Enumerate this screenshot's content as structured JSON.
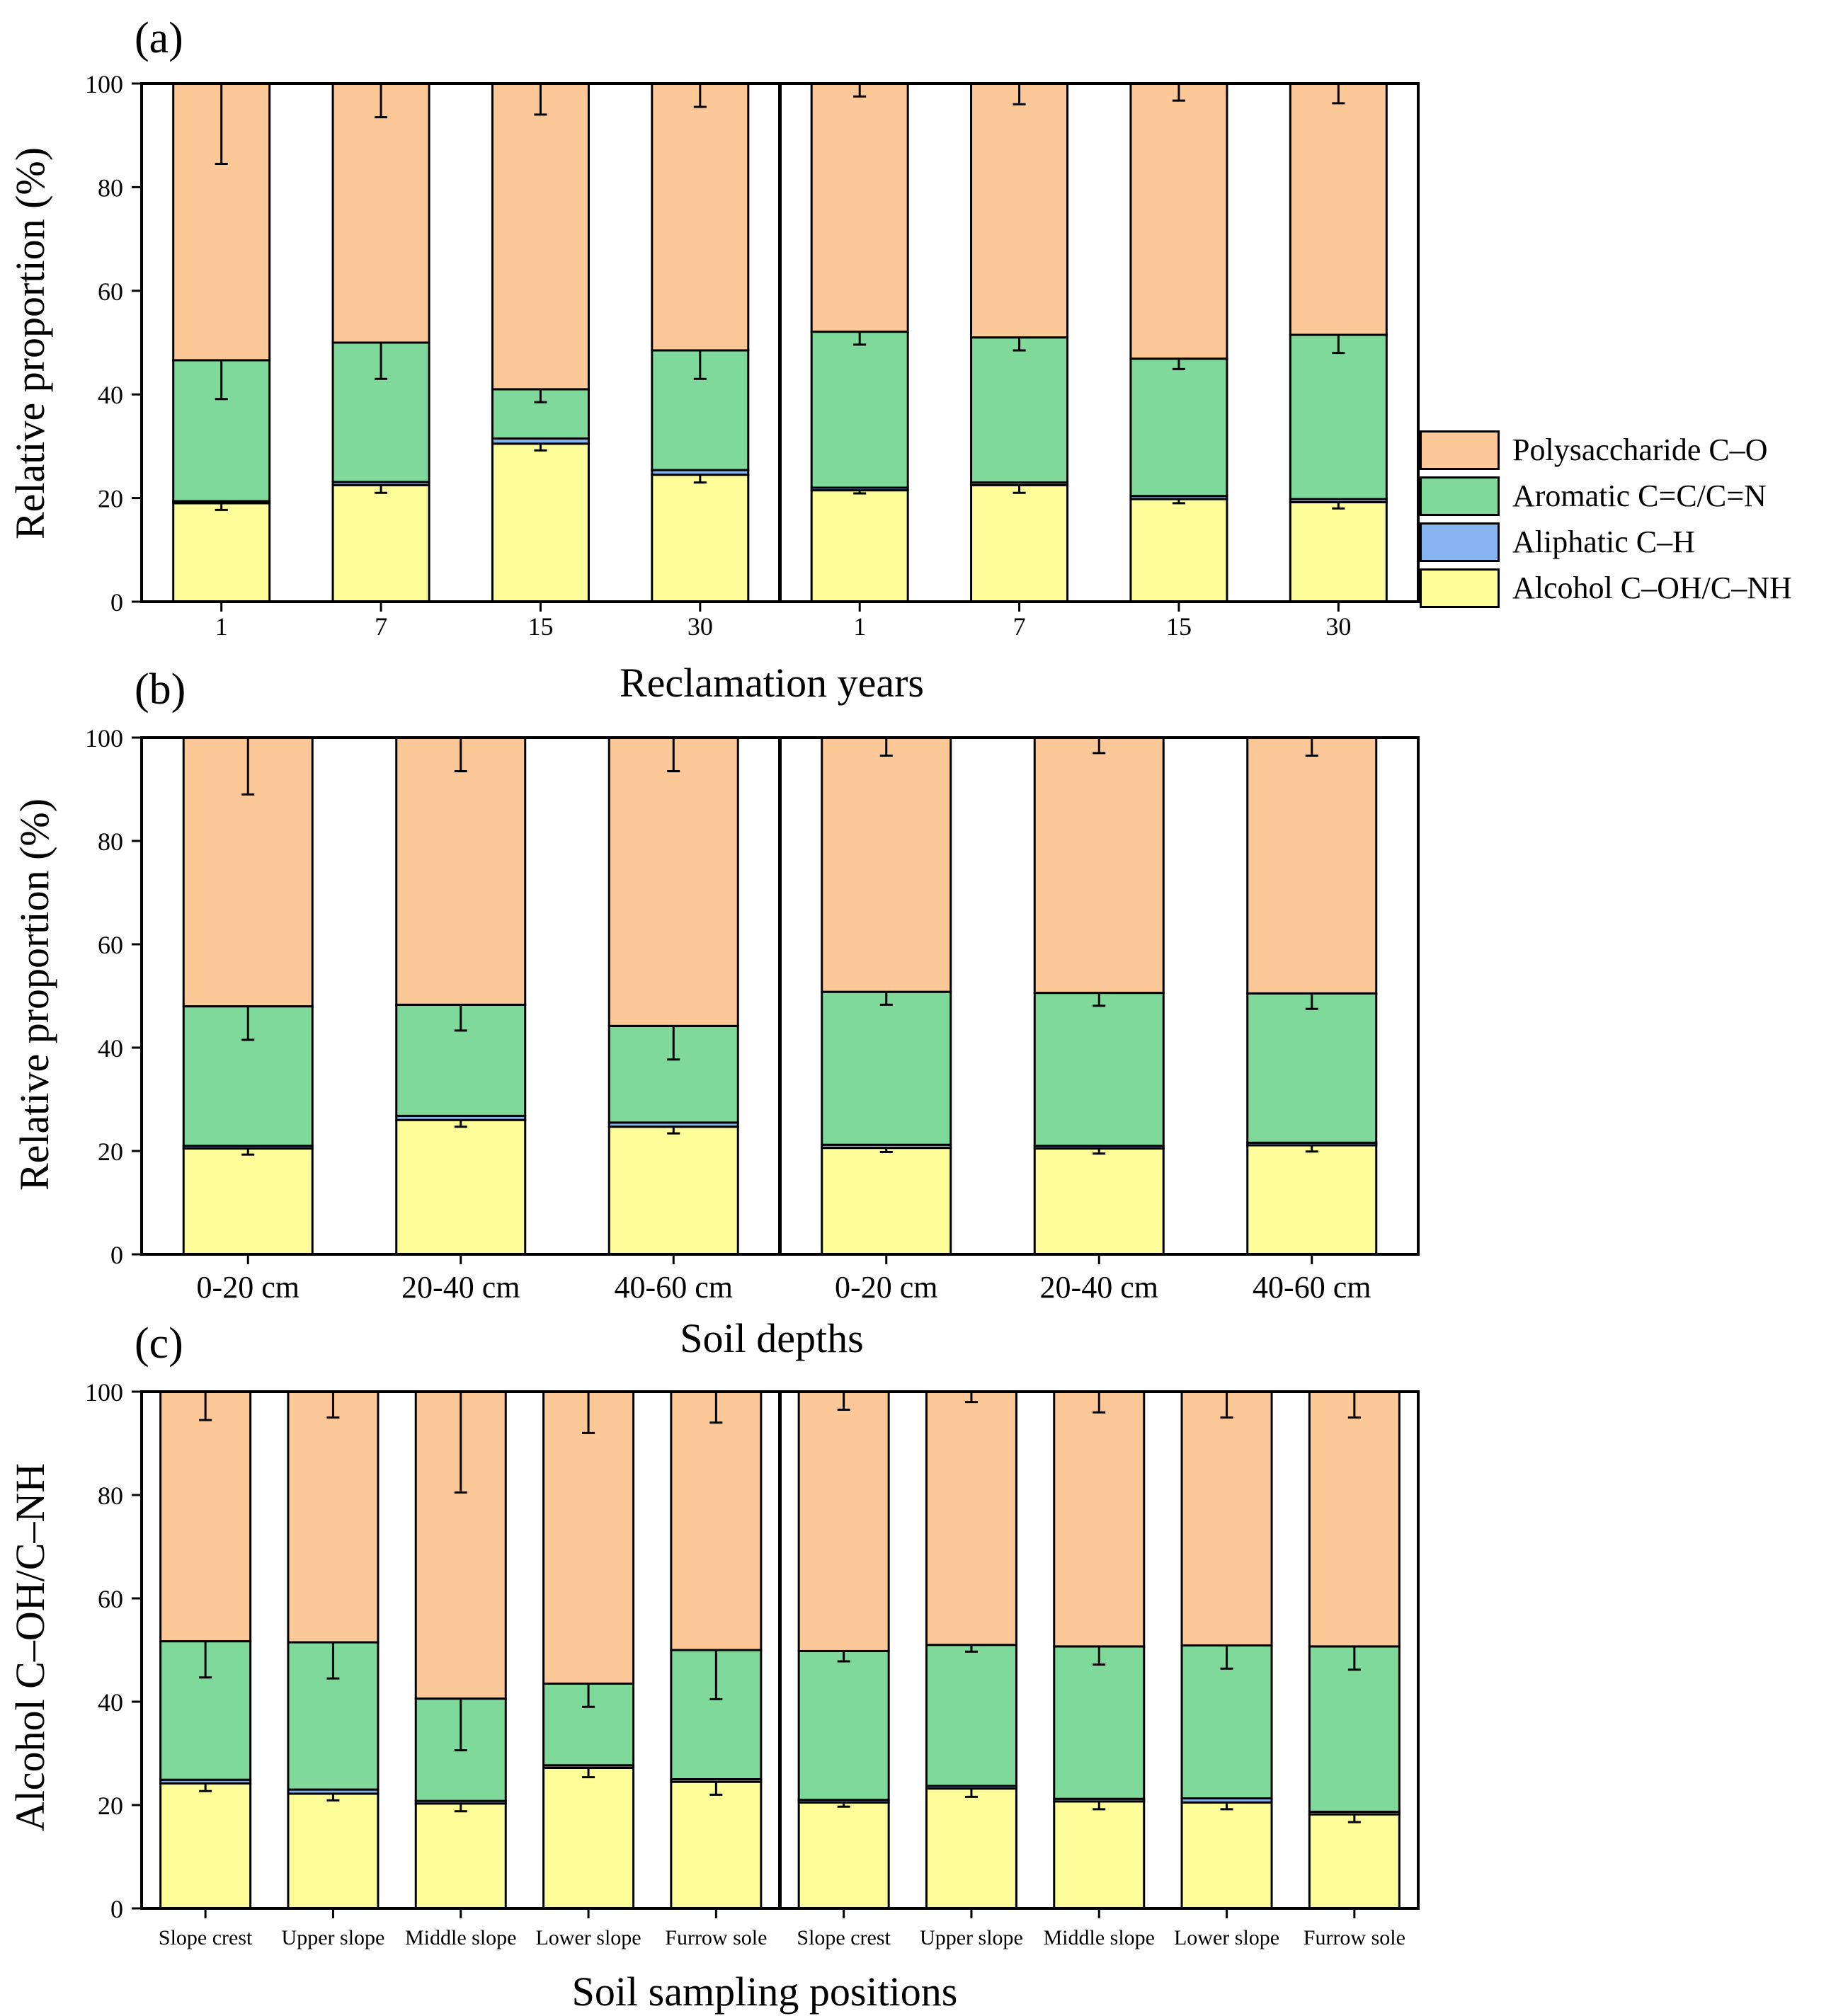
{
  "colors": {
    "Polysaccharide C–O": "#FDC898",
    "Aromatic C=C/C=N": "#7FD99A",
    "Aliphatic C–H": "#86B4EE",
    "Alcohol C–OH/C–NH": "#FDFE99"
  },
  "legend": [
    {
      "label": "Polysaccharide C–O",
      "color": "#FDC898"
    },
    {
      "label": "Aromatic C=C/C=N",
      "color": "#7FD99A"
    },
    {
      "label": "Aliphatic C–H",
      "color": "#86B4EE"
    },
    {
      "label": "Alcohol C–OH/C–NH",
      "color": "#FDFE99"
    }
  ],
  "chart_data": [
    {
      "panel": "(a)",
      "type": "bar",
      "stacked": true,
      "xlabel": "Reclamation years",
      "ylabel": "Relative proportion (%)",
      "ylim": [
        0,
        100
      ],
      "yticks": [
        "0",
        "20",
        "40",
        "60",
        "80",
        "100"
      ],
      "groups": 2,
      "categories": [
        "1",
        "7",
        "15",
        "30",
        "1",
        "7",
        "15",
        "30"
      ],
      "series": [
        {
          "name": "Alcohol C–OH/C–NH",
          "values": [
            19,
            22.5,
            30.5,
            24.5,
            21.5,
            22.5,
            19.8,
            19.2
          ],
          "errors": [
            1.3,
            1.5,
            1.3,
            1.5,
            0.6,
            1.5,
            0.8,
            1.2
          ]
        },
        {
          "name": "Aliphatic C–H",
          "values": [
            0.4,
            0.6,
            1.0,
            0.9,
            0.5,
            0.5,
            0.6,
            0.6
          ],
          "errors": [
            0,
            0,
            0,
            0,
            0,
            0,
            0,
            0
          ]
        },
        {
          "name": "Aromatic C=C/C=N",
          "values": [
            27.2,
            26.9,
            9.5,
            23.1,
            30.1,
            28.0,
            26.5,
            31.7
          ],
          "errors": [
            7.5,
            7.0,
            2.5,
            5.5,
            2.5,
            2.5,
            2.0,
            3.5
          ]
        },
        {
          "name": "Polysaccharide C–O",
          "values": [
            53.4,
            50.0,
            59.0,
            51.5,
            47.9,
            49.0,
            53.1,
            48.5
          ],
          "errors": [
            15.5,
            6.5,
            6.0,
            4.5,
            2.5,
            4.0,
            3.3,
            3.8
          ]
        }
      ]
    },
    {
      "panel": "(b)",
      "type": "bar",
      "stacked": true,
      "xlabel": "Soil depths",
      "ylabel": "Relative proportion (%)",
      "ylim": [
        0,
        100
      ],
      "yticks": [
        "0",
        "20",
        "40",
        "60",
        "80",
        "100"
      ],
      "groups": 2,
      "categories": [
        "0-20 cm",
        "20-40 cm",
        "40-60 cm",
        "0-20 cm",
        "20-40 cm",
        "40-60 cm"
      ],
      "series": [
        {
          "name": "Alcohol C–OH/C–NH",
          "values": [
            20.5,
            26,
            24.7,
            20.6,
            20.5,
            21.1
          ],
          "errors": [
            1.2,
            1.3,
            1.3,
            0.8,
            1.0,
            1.2
          ]
        },
        {
          "name": "Aliphatic C–H",
          "values": [
            0.5,
            0.8,
            0.8,
            0.6,
            0.5,
            0.5
          ],
          "errors": [
            0,
            0,
            0,
            0,
            0,
            0
          ]
        },
        {
          "name": "Aromatic C=C/C=N",
          "values": [
            27.0,
            21.5,
            18.7,
            29.6,
            29.6,
            28.9
          ],
          "errors": [
            6.5,
            5.0,
            6.5,
            2.5,
            2.5,
            3.0
          ]
        },
        {
          "name": "Polysaccharide C–O",
          "values": [
            52.0,
            51.7,
            55.8,
            49.2,
            49.4,
            49.5
          ],
          "errors": [
            11.0,
            6.5,
            6.5,
            3.5,
            3.0,
            3.5
          ]
        }
      ]
    },
    {
      "panel": "(c)",
      "type": "bar",
      "stacked": true,
      "xlabel": "Soil sampling positions",
      "ylabel": "Alcohol C–OH/C–NH",
      "ylim": [
        0,
        100
      ],
      "yticks": [
        "0",
        "20",
        "40",
        "60",
        "80",
        "100"
      ],
      "groups": 2,
      "categories": [
        "Slope crest",
        "Upper slope",
        "Middle slope",
        "Lower slope",
        "Furrow sole",
        "Slope crest",
        "Upper slope",
        "Middle slope",
        "Lower slope",
        "Furrow sole"
      ],
      "series": [
        {
          "name": "Alcohol C–OH/C–NH",
          "values": [
            24.2,
            22.2,
            20.3,
            27.2,
            24.5,
            20.5,
            23.2,
            20.7,
            20.5,
            18.2
          ],
          "errors": [
            1.5,
            1.3,
            1.5,
            1.8,
            2.5,
            0.8,
            1.6,
            1.5,
            1.3,
            1.5
          ]
        },
        {
          "name": "Aliphatic C–H",
          "values": [
            0.7,
            0.8,
            0.5,
            0.5,
            0.5,
            0.5,
            0.5,
            0.5,
            0.8,
            0.5
          ],
          "errors": [
            0,
            0,
            0,
            0,
            0,
            0,
            0,
            0,
            0,
            0
          ]
        },
        {
          "name": "Aromatic C=C/C=N",
          "values": [
            26.8,
            28.5,
            19.8,
            15.8,
            25.0,
            28.8,
            27.3,
            29.5,
            29.6,
            32.0
          ],
          "errors": [
            7.0,
            7.0,
            10.0,
            4.5,
            9.5,
            2.0,
            1.3,
            3.5,
            4.5,
            4.5
          ]
        },
        {
          "name": "Polysaccharide C–O",
          "values": [
            48.3,
            48.5,
            59.4,
            56.5,
            50.0,
            50.2,
            49.0,
            49.3,
            49.1,
            49.3
          ],
          "errors": [
            5.5,
            5.0,
            19.5,
            8.0,
            6.0,
            3.5,
            2.0,
            4.0,
            5.0,
            5.0
          ]
        }
      ]
    }
  ]
}
